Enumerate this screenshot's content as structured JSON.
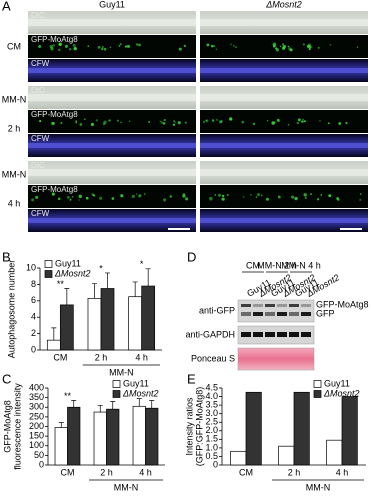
{
  "panels": {
    "A": {
      "label": "A",
      "columns": [
        "Guy11",
        "ΔMosnt2"
      ],
      "groups": [
        {
          "condition": [
            "CM"
          ],
          "channels": [
            "DIC",
            "GFP-MoAtg8",
            "CFW"
          ]
        },
        {
          "condition": [
            "MM-N",
            "2 h"
          ],
          "channels": [
            "DIC",
            "GFP-MoAtg8",
            "CFW"
          ]
        },
        {
          "condition": [
            "MM-N",
            "4 h"
          ],
          "channels": [
            "DIC",
            "GFP-MoAtg8",
            "CFW"
          ]
        }
      ]
    },
    "D": {
      "label": "D",
      "conditions": [
        "CM",
        "MM-N 2 h",
        "MM-N 4 h"
      ],
      "lanes": [
        "Guy11",
        "ΔMosnt2",
        "Guy11",
        "ΔMosnt2",
        "Guy11",
        "ΔMosnt2"
      ],
      "rows": [
        "anti-GFP",
        "anti-GAPDH",
        "Ponceau S"
      ],
      "bands": [
        "GFP-MoAtg8",
        "GFP"
      ]
    }
  },
  "chart_data": [
    {
      "type": "bar",
      "panel_label": "B",
      "y_label": [
        "Autophagosome number"
      ],
      "categories": [
        "CM",
        "2 h",
        "4 h"
      ],
      "group_label": "MM-N",
      "series": [
        {
          "name": "Guy11",
          "color": "#ffffff",
          "values": [
            1.2,
            6.3,
            6.5
          ],
          "errors": [
            1.5,
            1.8,
            1.8
          ]
        },
        {
          "name": "ΔMosnt2",
          "color": "#333333",
          "values": [
            5.5,
            7.5,
            7.8
          ],
          "errors": [
            2.0,
            1.9,
            2.1
          ]
        }
      ],
      "significance": [
        "**",
        "*",
        "*"
      ],
      "ylim": [
        0,
        10
      ],
      "yticks": [
        0,
        2,
        4,
        6,
        8,
        10
      ],
      "legend": "upper left"
    },
    {
      "type": "bar",
      "panel_label": "C",
      "y_label": [
        "GFP-MoAtg8",
        "fluorescence intensity"
      ],
      "categories": [
        "CM",
        "2 h",
        "4 h"
      ],
      "group_label": "MM-N",
      "series": [
        {
          "name": "Guy11",
          "color": "#ffffff",
          "values": [
            195,
            275,
            305
          ],
          "errors": [
            25,
            35,
            40
          ]
        },
        {
          "name": "ΔMosnt2",
          "color": "#333333",
          "values": [
            300,
            290,
            295
          ],
          "errors": [
            35,
            40,
            40
          ]
        }
      ],
      "significance": [
        "**",
        null,
        null
      ],
      "ylim": [
        0,
        400
      ],
      "yticks": [
        0,
        50,
        100,
        150,
        200,
        250,
        300,
        350,
        400
      ],
      "legend": "upper right"
    },
    {
      "type": "bar",
      "panel_label": "E",
      "y_label": [
        "Intensity ratios",
        "(GFP:GFP-MoAtg8)"
      ],
      "categories": [
        "CM",
        "2 h",
        "4 h"
      ],
      "group_label": "MM-N",
      "series": [
        {
          "name": "Guy11",
          "color": "#ffffff",
          "values": [
            0.8,
            1.1,
            1.45
          ]
        },
        {
          "name": "ΔMosnt2",
          "color": "#333333",
          "values": [
            4.25,
            4.25,
            4.0
          ]
        }
      ],
      "ylim": [
        0,
        4.5
      ],
      "yticks": [
        0,
        0.5,
        {
          "value": 1,
          "label": "1.0"
        },
        1.5,
        {
          "value": 2,
          "label": "2.0"
        },
        2.5,
        {
          "value": 3,
          "label": "3.0"
        },
        3.5,
        {
          "value": 4,
          "label": "4.0"
        },
        4.5
      ],
      "legend": "upper right"
    }
  ]
}
